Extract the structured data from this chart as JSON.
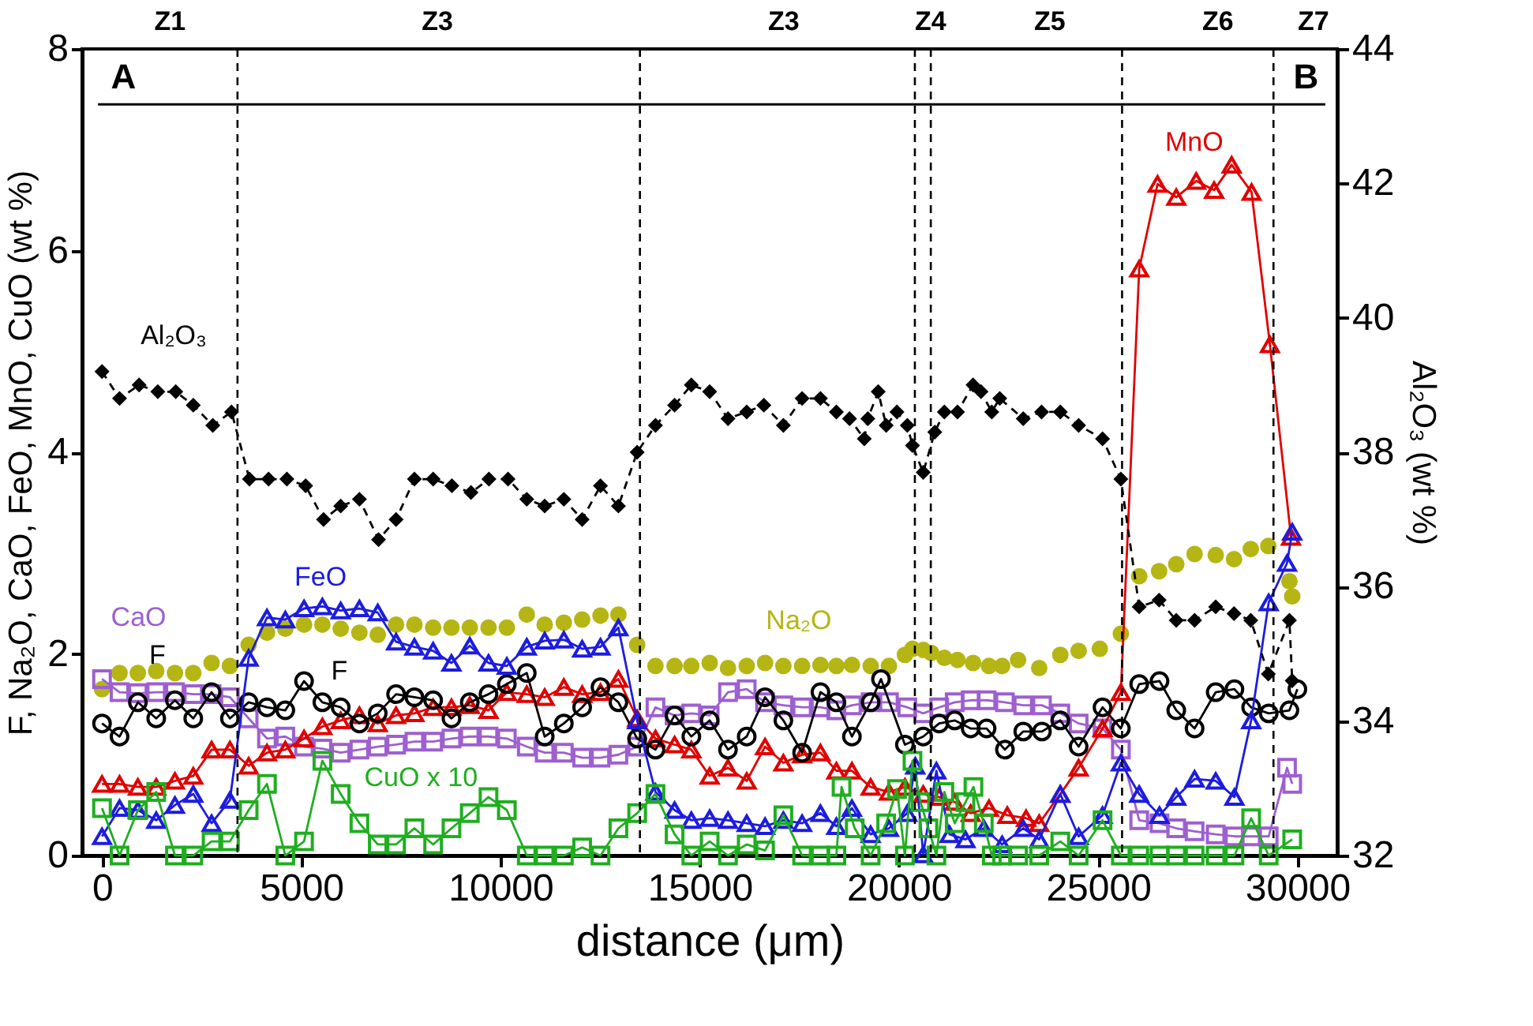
{
  "chart_data": {
    "type": "line",
    "xlabel": "distance (μm)",
    "ylabel": "F, Na₂O, CaO, FeO, MnO, CuO (wt %)",
    "y2label": "Al₂O₃ (wt %)",
    "xlim": [
      -500,
      31000
    ],
    "xticks": [
      0,
      5000,
      10000,
      15000,
      20000,
      25000,
      30000
    ],
    "ylim": [
      0,
      8
    ],
    "yticks": [
      0,
      2,
      4,
      6,
      8
    ],
    "y2lim": [
      32,
      44
    ],
    "y2ticks": [
      32,
      34,
      36,
      38,
      40,
      42,
      44
    ],
    "grid": false,
    "series": [
      {
        "type": "line",
        "name": "Al₂O₃",
        "axis": "y2",
        "color": "#000000",
        "marker": "diamond",
        "line_style": "dashed",
        "x": [
          0,
          440,
          930,
          1400,
          1850,
          2290,
          2780,
          3250,
          3700,
          4180,
          4640,
          5110,
          5560,
          5990,
          6460,
          6940,
          7380,
          7840,
          8310,
          8780,
          9260,
          9710,
          10190,
          10660,
          11110,
          11590,
          12050,
          12510,
          12960,
          13430,
          13890,
          14370,
          14790,
          15250,
          15710,
          16180,
          16610,
          17100,
          17570,
          18030,
          18430,
          18760,
          19130,
          19220,
          19480,
          19680,
          19950,
          20210,
          20340,
          20610,
          20900,
          21140,
          21470,
          21860,
          22060,
          22330,
          22530,
          23120,
          23580,
          24050,
          24510,
          25110,
          25570,
          26030,
          26530,
          26960,
          27420,
          27950,
          28410,
          28830,
          29270,
          29800,
          29870
        ],
        "values": [
          39.2,
          38.8,
          39.0,
          38.9,
          38.9,
          38.7,
          38.4,
          38.6,
          37.6,
          37.6,
          37.6,
          37.5,
          37.0,
          37.2,
          37.3,
          36.7,
          37.0,
          37.6,
          37.6,
          37.5,
          37.4,
          37.6,
          37.6,
          37.3,
          37.2,
          37.3,
          37.0,
          37.5,
          37.2,
          38.0,
          38.4,
          38.7,
          39.0,
          38.9,
          38.5,
          38.6,
          38.7,
          38.4,
          38.8,
          38.8,
          38.6,
          38.5,
          38.2,
          38.5,
          38.9,
          38.4,
          38.6,
          38.4,
          38.1,
          37.7,
          38.3,
          38.6,
          38.6,
          39.0,
          38.9,
          38.6,
          38.8,
          38.5,
          38.6,
          38.6,
          38.4,
          38.2,
          37.6,
          35.7,
          35.8,
          35.5,
          35.5,
          35.7,
          35.6,
          35.5,
          34.7,
          35.5,
          34.6
        ]
      },
      {
        "type": "scatter",
        "name": "Na₂O",
        "color": "#b5b514",
        "marker": "circle",
        "x": [
          0,
          440,
          900,
          1360,
          1830,
          2290,
          2750,
          3210,
          3680,
          4140,
          4600,
          5070,
          5530,
          5990,
          6460,
          6920,
          7380,
          7840,
          8310,
          8770,
          9230,
          9700,
          10160,
          10660,
          11110,
          11590,
          12050,
          12510,
          12960,
          13430,
          13890,
          14370,
          14790,
          15250,
          15710,
          16180,
          16640,
          17100,
          17570,
          18030,
          18430,
          18820,
          19290,
          19750,
          20150,
          20340,
          20610,
          20810,
          21140,
          21470,
          21860,
          22260,
          22590,
          22990,
          23520,
          24050,
          24510,
          25040,
          25570,
          26030,
          26530,
          26960,
          27420,
          27950,
          28410,
          28830,
          29270,
          29800,
          29870
        ],
        "values": [
          1.65,
          1.81,
          1.81,
          1.83,
          1.81,
          1.81,
          1.91,
          1.88,
          2.09,
          2.21,
          2.25,
          2.29,
          2.29,
          2.25,
          2.21,
          2.19,
          2.29,
          2.29,
          2.26,
          2.26,
          2.26,
          2.26,
          2.26,
          2.39,
          2.29,
          2.31,
          2.34,
          2.38,
          2.39,
          2.09,
          1.88,
          1.88,
          1.88,
          1.91,
          1.86,
          1.88,
          1.91,
          1.88,
          1.88,
          1.89,
          1.88,
          1.89,
          1.88,
          1.88,
          1.99,
          2.05,
          2.04,
          2.01,
          1.96,
          1.94,
          1.91,
          1.88,
          1.88,
          1.94,
          1.86,
          1.99,
          2.03,
          2.05,
          2.2,
          2.77,
          2.82,
          2.89,
          2.99,
          2.98,
          2.94,
          3.04,
          3.07,
          2.72,
          2.57
        ]
      },
      {
        "type": "line",
        "name": "CaO",
        "color": "#9e5fd0",
        "marker": "square",
        "line_style": "solid",
        "x": [
          0,
          440,
          900,
          1360,
          1830,
          2290,
          2750,
          3210,
          3680,
          4140,
          4600,
          5070,
          5530,
          5990,
          6460,
          6920,
          7380,
          7840,
          8310,
          8770,
          9230,
          9700,
          10160,
          10660,
          11110,
          11590,
          12050,
          12510,
          12960,
          13430,
          13890,
          14370,
          14790,
          15250,
          15710,
          16180,
          16640,
          17100,
          17570,
          18030,
          18430,
          18820,
          19290,
          19750,
          20210,
          20610,
          21010,
          21400,
          21800,
          22200,
          22660,
          23120,
          23590,
          24050,
          24510,
          25110,
          25570,
          26030,
          26540,
          26960,
          27420,
          27950,
          28420,
          28840,
          29280,
          29740,
          29870
        ],
        "values": [
          1.75,
          1.62,
          1.61,
          1.62,
          1.62,
          1.6,
          1.6,
          1.57,
          1.36,
          1.16,
          1.18,
          1.08,
          1.06,
          1.02,
          1.05,
          1.08,
          1.1,
          1.13,
          1.13,
          1.16,
          1.18,
          1.18,
          1.16,
          1.08,
          1.02,
          1.02,
          0.97,
          0.97,
          1.0,
          1.08,
          1.47,
          1.39,
          1.41,
          1.39,
          1.62,
          1.65,
          1.52,
          1.49,
          1.47,
          1.47,
          1.44,
          1.49,
          1.52,
          1.52,
          1.47,
          1.41,
          1.47,
          1.52,
          1.54,
          1.54,
          1.52,
          1.49,
          1.49,
          1.41,
          1.31,
          1.26,
          1.05,
          0.35,
          0.32,
          0.27,
          0.24,
          0.21,
          0.19,
          0.19,
          0.19,
          0.87,
          0.71
        ]
      },
      {
        "type": "line",
        "name": "MnO",
        "color": "#e00000",
        "marker": "triangle",
        "line_style": "solid",
        "x": [
          0,
          440,
          900,
          1360,
          1830,
          2290,
          2750,
          3210,
          3680,
          4140,
          4600,
          5070,
          5530,
          5990,
          6460,
          6920,
          7380,
          7840,
          8310,
          8770,
          9230,
          9700,
          10160,
          10660,
          11110,
          11590,
          12050,
          12510,
          12960,
          13430,
          13890,
          14370,
          14790,
          15250,
          15710,
          16180,
          16640,
          17100,
          17570,
          18030,
          18430,
          18820,
          19290,
          19750,
          20150,
          20610,
          21010,
          21400,
          21800,
          22260,
          22720,
          23190,
          23520,
          24050,
          24510,
          25110,
          25570,
          26030,
          26490,
          26960,
          27460,
          27910,
          28350,
          28850,
          29310,
          29840
        ],
        "values": [
          0.71,
          0.71,
          0.68,
          0.68,
          0.74,
          0.79,
          1.05,
          1.05,
          0.89,
          1.02,
          1.05,
          1.16,
          1.28,
          1.34,
          1.39,
          1.31,
          1.39,
          1.41,
          1.47,
          1.47,
          1.49,
          1.44,
          1.62,
          1.6,
          1.57,
          1.67,
          1.6,
          1.62,
          1.75,
          1.36,
          1.16,
          1.1,
          1.05,
          0.79,
          0.87,
          0.74,
          1.08,
          0.92,
          1.0,
          1.02,
          0.84,
          0.84,
          0.68,
          0.63,
          0.68,
          0.61,
          0.58,
          0.53,
          0.42,
          0.47,
          0.4,
          0.37,
          0.32,
          0.61,
          0.87,
          1.26,
          1.62,
          5.82,
          6.66,
          6.53,
          6.69,
          6.6,
          6.85,
          6.58,
          5.07,
          3.16
        ]
      },
      {
        "type": "line",
        "name": "F",
        "color": "#000000",
        "marker": "circle",
        "line_style": "solid",
        "x": [
          0,
          440,
          900,
          1360,
          1830,
          2290,
          2750,
          3210,
          3680,
          4140,
          4600,
          5070,
          5530,
          5990,
          6460,
          6920,
          7380,
          7840,
          8310,
          8770,
          9230,
          9700,
          10160,
          10660,
          11110,
          11590,
          12050,
          12510,
          12960,
          13430,
          13890,
          14370,
          14790,
          15250,
          15710,
          16180,
          16640,
          17100,
          17570,
          18030,
          18430,
          18820,
          19290,
          19550,
          20150,
          20610,
          21010,
          21400,
          21800,
          22200,
          22660,
          23120,
          23590,
          24050,
          24510,
          25110,
          25570,
          26030,
          26540,
          26960,
          27420,
          27950,
          28420,
          28840,
          29280,
          29800,
          30000
        ],
        "values": [
          1.31,
          1.18,
          1.52,
          1.36,
          1.54,
          1.36,
          1.62,
          1.36,
          1.52,
          1.47,
          1.44,
          1.73,
          1.52,
          1.47,
          1.31,
          1.41,
          1.6,
          1.57,
          1.54,
          1.36,
          1.52,
          1.6,
          1.7,
          1.81,
          1.18,
          1.31,
          1.47,
          1.67,
          1.52,
          1.16,
          1.05,
          1.39,
          1.18,
          1.34,
          1.05,
          1.18,
          1.57,
          1.34,
          1.02,
          1.62,
          1.52,
          1.18,
          1.52,
          1.75,
          1.1,
          1.18,
          1.31,
          1.34,
          1.26,
          1.26,
          1.05,
          1.23,
          1.23,
          1.34,
          1.08,
          1.47,
          1.26,
          1.7,
          1.73,
          1.44,
          1.26,
          1.62,
          1.65,
          1.47,
          1.41,
          1.44,
          1.65
        ]
      },
      {
        "type": "line",
        "name": "FeO",
        "color": "#1c1ce0",
        "marker": "triangle",
        "line_style": "solid",
        "x": [
          0,
          440,
          900,
          1360,
          1830,
          2290,
          2750,
          3210,
          3680,
          4140,
          4600,
          5070,
          5530,
          5990,
          6460,
          6920,
          7380,
          7840,
          8310,
          8770,
          9230,
          9700,
          10160,
          10660,
          11110,
          11590,
          12050,
          12510,
          12960,
          13430,
          13890,
          14370,
          14790,
          15250,
          15710,
          16180,
          16640,
          17100,
          17570,
          18030,
          18430,
          18820,
          19290,
          19750,
          20210,
          20410,
          20610,
          20940,
          21270,
          21670,
          22130,
          22590,
          23120,
          23520,
          24050,
          24510,
          25110,
          25570,
          26030,
          26540,
          26960,
          27420,
          27950,
          28420,
          28840,
          29280,
          29740,
          29870
        ],
        "values": [
          0.19,
          0.47,
          0.45,
          0.35,
          0.5,
          0.61,
          0.32,
          0.55,
          1.96,
          2.36,
          2.34,
          2.45,
          2.47,
          2.43,
          2.45,
          2.41,
          2.12,
          2.07,
          2.03,
          1.91,
          2.08,
          1.91,
          1.88,
          2.07,
          2.13,
          2.14,
          2.05,
          2.07,
          2.26,
          1.34,
          0.63,
          0.45,
          0.35,
          0.37,
          0.35,
          0.32,
          0.29,
          0.35,
          0.32,
          0.42,
          0.29,
          0.47,
          0.21,
          0.27,
          0.42,
          0.89,
          0.01,
          0.84,
          0.21,
          0.16,
          0.27,
          0.11,
          0.27,
          0.16,
          0.61,
          0.19,
          0.4,
          0.92,
          0.61,
          0.4,
          0.58,
          0.76,
          0.74,
          0.58,
          1.34,
          2.51,
          2.9,
          3.21
        ]
      },
      {
        "type": "line",
        "name": "CuO x 10",
        "color": "#1fae1f",
        "marker": "square",
        "line_style": "solid",
        "x": [
          0,
          440,
          900,
          1360,
          1830,
          2290,
          2750,
          3210,
          3680,
          4140,
          4600,
          5070,
          5530,
          5990,
          6460,
          6920,
          7380,
          7840,
          8310,
          8770,
          9230,
          9700,
          10160,
          10660,
          11110,
          11590,
          12050,
          12510,
          12960,
          13430,
          13890,
          14370,
          14790,
          15250,
          15710,
          16180,
          16640,
          17100,
          17570,
          18030,
          18430,
          18560,
          18890,
          19290,
          19680,
          19950,
          20150,
          20340,
          20540,
          20740,
          20940,
          21140,
          21400,
          21670,
          21870,
          22130,
          22330,
          22590,
          22990,
          23520,
          24050,
          24510,
          25110,
          25570,
          26030,
          26540,
          26960,
          27420,
          27950,
          28420,
          28840,
          29280,
          29870
        ],
        "values": [
          0.47,
          0,
          0.45,
          0.63,
          0,
          0,
          0.14,
          0.14,
          0.45,
          0.71,
          0,
          0.14,
          0.94,
          0.61,
          0.32,
          0.11,
          0.11,
          0.27,
          0.11,
          0.27,
          0.42,
          0.58,
          0.45,
          0,
          0,
          0,
          0.08,
          0,
          0.27,
          0.42,
          0.61,
          0.21,
          0,
          0.14,
          0,
          0.11,
          0.05,
          0.4,
          0,
          0,
          0,
          0.68,
          0.27,
          0,
          0.32,
          0.66,
          0,
          0.94,
          0.53,
          0.27,
          0,
          0.63,
          0.32,
          0.53,
          0.68,
          0.32,
          0,
          0,
          0,
          0,
          0.14,
          0,
          0.35,
          0,
          0,
          0,
          0,
          0,
          0,
          0,
          0.37,
          0,
          0.16
        ]
      },
      {
        "type": "line",
        "color": "#000000",
        "marker": "none",
        "line_style": "solid",
        "x": [
          -100,
          30700
        ],
        "values": [
          7.45,
          7.45
        ]
      }
    ],
    "ref_lines": [
      {
        "axis": "x",
        "value": 3400,
        "color": "#000000",
        "line_style": "dashed"
      },
      {
        "axis": "x",
        "value": 13500,
        "color": "#000000",
        "line_style": "dashed"
      },
      {
        "axis": "x",
        "value": 20400,
        "color": "#000000",
        "line_style": "dashed"
      },
      {
        "axis": "x",
        "value": 20800,
        "color": "#000000",
        "line_style": "dashed"
      },
      {
        "axis": "x",
        "value": 25600,
        "color": "#000000",
        "line_style": "dashed"
      },
      {
        "axis": "x",
        "value": 29400,
        "color": "#000000",
        "line_style": "dashed"
      }
    ],
    "annotations": [
      "Z1",
      "Z3",
      "Z3",
      "Z4",
      "Z5",
      "Z6",
      "Z7",
      "A",
      "B"
    ]
  }
}
